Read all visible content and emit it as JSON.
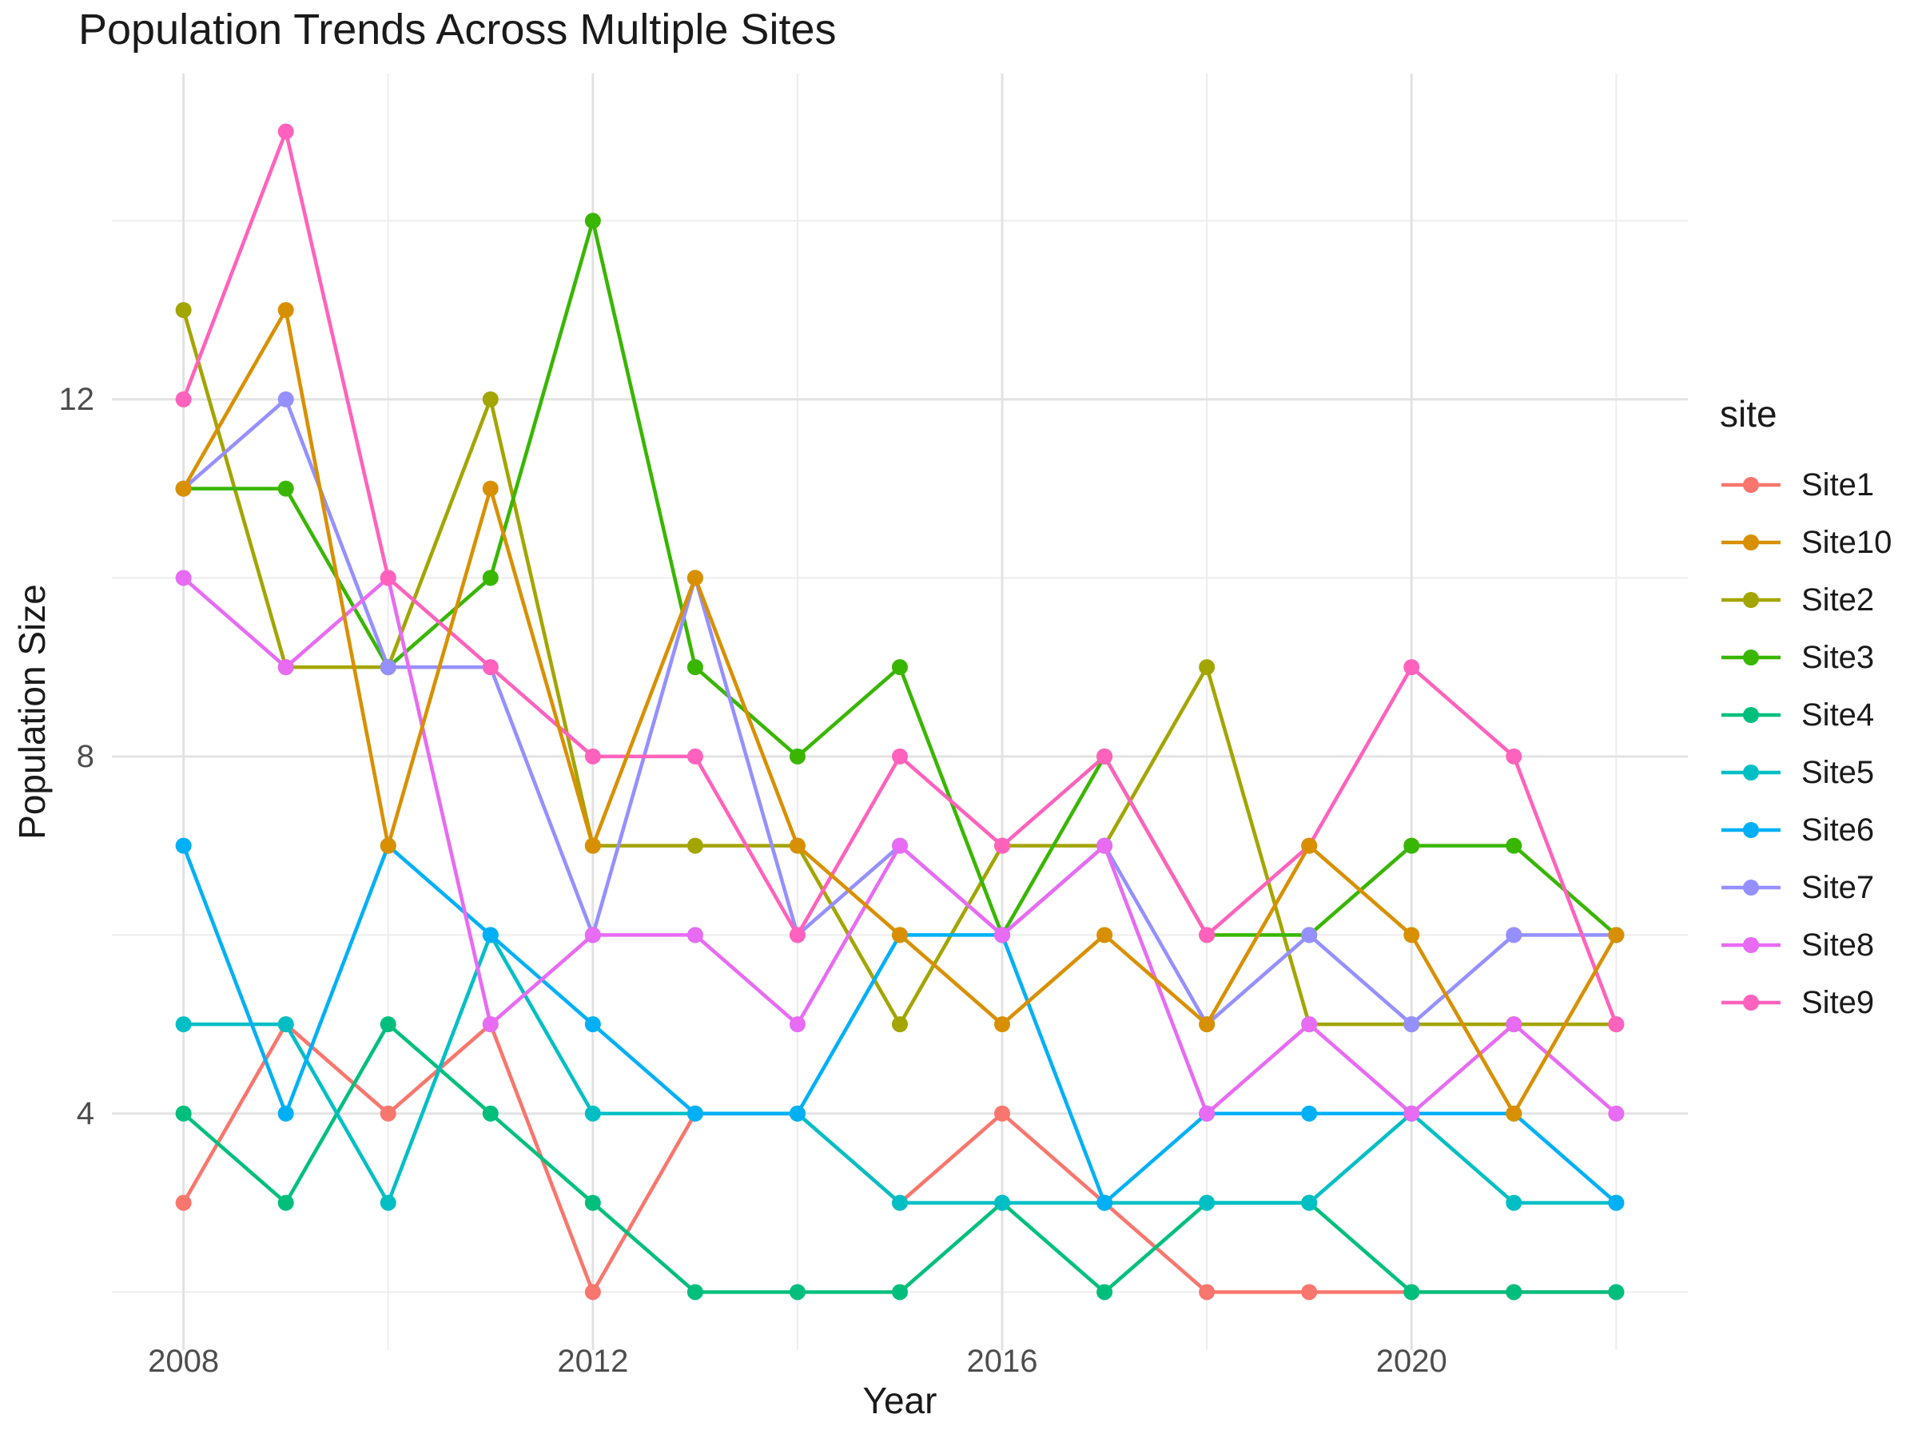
{
  "header": {
    "title": "Population Trends Across Multiple Sites"
  },
  "axes": {
    "x": {
      "label": "Year",
      "tick_labels": [
        "2008",
        "2012",
        "2016",
        "2020"
      ]
    },
    "y": {
      "label": "Population Size",
      "tick_labels": [
        "4",
        "8",
        "12"
      ]
    }
  },
  "legend": {
    "title": "site",
    "order": [
      "Site1",
      "Site10",
      "Site2",
      "Site3",
      "Site4",
      "Site5",
      "Site6",
      "Site7",
      "Site8",
      "Site9"
    ]
  },
  "chart_data": {
    "type": "line",
    "title": "Population Trends Across Multiple Sites",
    "xlabel": "Year",
    "ylabel": "Population Size",
    "x": [
      2008,
      2009,
      2010,
      2011,
      2012,
      2013,
      2014,
      2015,
      2016,
      2017,
      2018,
      2019,
      2020,
      2021,
      2022
    ],
    "series": [
      {
        "name": "Site1",
        "color": "#F8766D",
        "values": [
          3,
          5,
          4,
          5,
          2,
          4,
          4,
          3,
          4,
          3,
          2,
          2,
          2,
          2,
          2
        ]
      },
      {
        "name": "Site2",
        "color": "#A3A500",
        "values": [
          13,
          9,
          9,
          12,
          7,
          7,
          7,
          5,
          7,
          7,
          9,
          5,
          5,
          5,
          5
        ]
      },
      {
        "name": "Site3",
        "color": "#39B600",
        "values": [
          11,
          11,
          9,
          10,
          14,
          9,
          8,
          9,
          6,
          8,
          6,
          6,
          7,
          7,
          6
        ]
      },
      {
        "name": "Site4",
        "color": "#00BF7D",
        "values": [
          4,
          3,
          5,
          4,
          3,
          2,
          2,
          2,
          3,
          2,
          3,
          3,
          2,
          2,
          2
        ]
      },
      {
        "name": "Site5",
        "color": "#00BFC4",
        "values": [
          5,
          5,
          3,
          6,
          4,
          4,
          4,
          3,
          3,
          3,
          3,
          3,
          4,
          3,
          3
        ]
      },
      {
        "name": "Site6",
        "color": "#00B0F6",
        "values": [
          7,
          4,
          7,
          6,
          5,
          4,
          4,
          6,
          6,
          3,
          4,
          4,
          4,
          4,
          3
        ]
      },
      {
        "name": "Site7",
        "color": "#9590FF",
        "values": [
          11,
          12,
          9,
          9,
          6,
          10,
          6,
          7,
          6,
          7,
          5,
          6,
          5,
          6,
          6
        ]
      },
      {
        "name": "Site8",
        "color": "#E76BF3",
        "values": [
          10,
          9,
          10,
          5,
          6,
          6,
          5,
          7,
          6,
          7,
          4,
          5,
          4,
          5,
          4
        ]
      },
      {
        "name": "Site9",
        "color": "#FF62BC",
        "values": [
          12,
          15,
          10,
          9,
          8,
          8,
          6,
          8,
          7,
          8,
          6,
          7,
          9,
          8,
          5
        ]
      },
      {
        "name": "Site10",
        "color": "#D89000",
        "values": [
          11,
          13,
          7,
          11,
          7,
          10,
          7,
          6,
          5,
          6,
          5,
          7,
          6,
          4,
          6
        ]
      }
    ],
    "x_ticks": [
      2008,
      2012,
      2016,
      2020
    ],
    "x_minor_ticks": [
      2010,
      2014,
      2018,
      2022
    ],
    "y_ticks": [
      4,
      8,
      12
    ],
    "y_minor_ticks": [
      2,
      6,
      10,
      14
    ],
    "xlim": [
      2007.3,
      2022.7
    ],
    "ylim": [
      1.35,
      15.65
    ],
    "grid": true,
    "legend_position": "right",
    "colors": {
      "grid_major": "#e2e2e2",
      "grid_minor": "#ededed",
      "tick_text": "#4d4d4d",
      "axis_text": "#1a1a1a"
    }
  }
}
